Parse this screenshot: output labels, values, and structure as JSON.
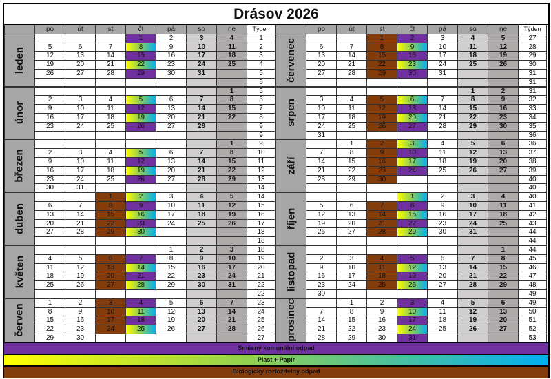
{
  "title": "Drásov 2026",
  "header": {
    "days": [
      "po",
      "út",
      "st",
      "čt",
      "pá",
      "so",
      "ne"
    ],
    "week_label": "Týden"
  },
  "colors": {
    "smesny": "#7030a0",
    "plast_gradient": [
      "#ffff00",
      "#00b0f0"
    ],
    "bio": "#843c0c",
    "saturday": "#d0cece",
    "sunday": "#aeaaaa"
  },
  "legend": {
    "smesny": "Směsný komunální odpad",
    "plast": "Plast + Papír",
    "bio": "Biologicky rozložitelný odpad"
  },
  "left": [
    {
      "name": "leden",
      "rows": [
        {
          "week": 1,
          "days": [
            null,
            null,
            null,
            1,
            2,
            3,
            4
          ]
        },
        {
          "week": 2,
          "days": [
            5,
            6,
            7,
            8,
            9,
            10,
            11
          ]
        },
        {
          "week": 3,
          "days": [
            12,
            13,
            14,
            15,
            16,
            17,
            18
          ]
        },
        {
          "week": 4,
          "days": [
            19,
            20,
            21,
            22,
            23,
            24,
            25
          ]
        },
        {
          "week": 5,
          "days": [
            26,
            27,
            28,
            29,
            30,
            31,
            null
          ]
        },
        {
          "week": 5,
          "days": [
            null,
            null,
            null,
            null,
            null,
            null,
            null
          ]
        }
      ],
      "smesny": [
        1,
        15,
        29
      ],
      "plast": [
        8,
        22
      ],
      "bio": []
    },
    {
      "name": "únor",
      "rows": [
        {
          "week": 5,
          "days": [
            null,
            null,
            null,
            null,
            null,
            null,
            1
          ]
        },
        {
          "week": 6,
          "days": [
            2,
            3,
            4,
            5,
            6,
            7,
            8
          ]
        },
        {
          "week": 7,
          "days": [
            9,
            10,
            11,
            12,
            13,
            14,
            15
          ]
        },
        {
          "week": 8,
          "days": [
            16,
            17,
            18,
            19,
            20,
            21,
            22
          ]
        },
        {
          "week": 9,
          "days": [
            23,
            24,
            25,
            26,
            27,
            28,
            null
          ]
        },
        {
          "week": 9,
          "days": [
            null,
            null,
            null,
            null,
            null,
            null,
            null
          ]
        }
      ],
      "smesny": [
        12,
        26
      ],
      "plast": [
        5,
        19
      ],
      "bio": []
    },
    {
      "name": "březen",
      "rows": [
        {
          "week": 9,
          "days": [
            null,
            null,
            null,
            null,
            null,
            null,
            1
          ]
        },
        {
          "week": 10,
          "days": [
            2,
            3,
            4,
            5,
            6,
            7,
            8
          ]
        },
        {
          "week": 11,
          "days": [
            9,
            10,
            11,
            12,
            13,
            14,
            15
          ]
        },
        {
          "week": 12,
          "days": [
            16,
            17,
            18,
            19,
            20,
            21,
            22
          ]
        },
        {
          "week": 13,
          "days": [
            23,
            24,
            25,
            26,
            27,
            28,
            29
          ]
        },
        {
          "week": 14,
          "days": [
            30,
            31,
            null,
            null,
            null,
            null,
            null
          ]
        }
      ],
      "smesny": [
        12,
        26
      ],
      "plast": [
        5,
        19
      ],
      "bio": []
    },
    {
      "name": "duben",
      "rows": [
        {
          "week": 14,
          "days": [
            null,
            null,
            1,
            2,
            3,
            4,
            5
          ]
        },
        {
          "week": 15,
          "days": [
            6,
            7,
            8,
            9,
            10,
            11,
            12
          ]
        },
        {
          "week": 16,
          "days": [
            13,
            14,
            15,
            16,
            17,
            18,
            19
          ]
        },
        {
          "week": 17,
          "days": [
            20,
            21,
            22,
            23,
            24,
            25,
            26
          ]
        },
        {
          "week": 18,
          "days": [
            27,
            28,
            29,
            30,
            null,
            null,
            null
          ]
        },
        {
          "week": 18,
          "days": [
            null,
            null,
            null,
            null,
            null,
            null,
            null
          ]
        }
      ],
      "smesny": [
        9,
        23
      ],
      "plast": [
        2,
        16,
        30
      ],
      "bio": [
        1,
        8,
        15,
        22,
        29
      ]
    },
    {
      "name": "květen",
      "rows": [
        {
          "week": 18,
          "days": [
            null,
            null,
            null,
            null,
            1,
            2,
            3
          ]
        },
        {
          "week": 19,
          "days": [
            4,
            5,
            6,
            7,
            8,
            9,
            10
          ]
        },
        {
          "week": 20,
          "days": [
            11,
            12,
            13,
            14,
            15,
            16,
            17
          ]
        },
        {
          "week": 21,
          "days": [
            18,
            19,
            20,
            21,
            22,
            23,
            24
          ]
        },
        {
          "week": 22,
          "days": [
            25,
            26,
            27,
            28,
            29,
            30,
            31
          ]
        },
        {
          "week": 22,
          "days": [
            null,
            null,
            null,
            null,
            null,
            null,
            null
          ]
        }
      ],
      "smesny": [
        7,
        21
      ],
      "plast": [
        14,
        28
      ],
      "bio": [
        6,
        13,
        20,
        27
      ]
    },
    {
      "name": "červen",
      "rows": [
        {
          "week": 23,
          "days": [
            1,
            2,
            3,
            4,
            5,
            6,
            7
          ]
        },
        {
          "week": 24,
          "days": [
            8,
            9,
            10,
            11,
            12,
            13,
            14
          ]
        },
        {
          "week": 25,
          "days": [
            15,
            16,
            17,
            18,
            19,
            20,
            21
          ]
        },
        {
          "week": 26,
          "days": [
            22,
            23,
            24,
            25,
            26,
            27,
            28
          ]
        },
        {
          "week": 27,
          "days": [
            29,
            30,
            null,
            null,
            null,
            null,
            null
          ]
        }
      ],
      "smesny": [
        4,
        18
      ],
      "plast": [
        11,
        25
      ],
      "bio": [
        3,
        10,
        17,
        24
      ]
    }
  ],
  "right": [
    {
      "name": "červenec",
      "rows": [
        {
          "week": 27,
          "days": [
            null,
            null,
            1,
            2,
            3,
            4,
            5
          ]
        },
        {
          "week": 28,
          "days": [
            6,
            7,
            8,
            9,
            10,
            11,
            12
          ]
        },
        {
          "week": 29,
          "days": [
            13,
            14,
            15,
            16,
            17,
            18,
            19
          ]
        },
        {
          "week": 30,
          "days": [
            20,
            21,
            22,
            23,
            24,
            25,
            26
          ]
        },
        {
          "week": 31,
          "days": [
            27,
            28,
            29,
            30,
            31,
            null,
            null
          ]
        },
        {
          "week": 31,
          "days": [
            null,
            null,
            null,
            null,
            null,
            null,
            null
          ]
        }
      ],
      "smesny": [
        2,
        16,
        30
      ],
      "plast": [
        9,
        23
      ],
      "bio": [
        1,
        8,
        15,
        22,
        29
      ]
    },
    {
      "name": "srpen",
      "rows": [
        {
          "week": 31,
          "days": [
            null,
            null,
            null,
            null,
            null,
            1,
            2
          ]
        },
        {
          "week": 32,
          "days": [
            3,
            4,
            5,
            6,
            7,
            8,
            9
          ]
        },
        {
          "week": 33,
          "days": [
            10,
            11,
            12,
            13,
            14,
            15,
            16
          ]
        },
        {
          "week": 34,
          "days": [
            17,
            18,
            19,
            20,
            21,
            22,
            23
          ]
        },
        {
          "week": 35,
          "days": [
            24,
            25,
            26,
            27,
            28,
            29,
            30
          ]
        },
        {
          "week": 36,
          "days": [
            31,
            null,
            null,
            null,
            null,
            null,
            null
          ]
        }
      ],
      "smesny": [
        13,
        27
      ],
      "plast": [
        6,
        20
      ],
      "bio": [
        5,
        12,
        19,
        26
      ]
    },
    {
      "name": "září",
      "rows": [
        {
          "week": 36,
          "days": [
            null,
            1,
            2,
            3,
            4,
            5,
            6
          ]
        },
        {
          "week": 37,
          "days": [
            7,
            8,
            9,
            10,
            11,
            12,
            13
          ]
        },
        {
          "week": 38,
          "days": [
            14,
            15,
            16,
            17,
            18,
            19,
            20
          ]
        },
        {
          "week": 39,
          "days": [
            21,
            22,
            23,
            24,
            25,
            26,
            27
          ]
        },
        {
          "week": 40,
          "days": [
            28,
            29,
            30,
            null,
            null,
            null,
            null
          ]
        },
        {
          "week": 40,
          "days": [
            null,
            null,
            null,
            null,
            null,
            null,
            null
          ]
        }
      ],
      "smesny": [
        10,
        24
      ],
      "plast": [
        3,
        17
      ],
      "bio": [
        2,
        9,
        16,
        23,
        30
      ]
    },
    {
      "name": "říjen",
      "rows": [
        {
          "week": 40,
          "days": [
            null,
            null,
            null,
            1,
            2,
            3,
            4
          ]
        },
        {
          "week": 41,
          "days": [
            5,
            6,
            7,
            8,
            9,
            10,
            11
          ]
        },
        {
          "week": 42,
          "days": [
            12,
            13,
            14,
            15,
            16,
            17,
            18
          ]
        },
        {
          "week": 43,
          "days": [
            19,
            20,
            21,
            22,
            23,
            24,
            25
          ]
        },
        {
          "week": 44,
          "days": [
            26,
            27,
            28,
            29,
            30,
            31,
            null
          ]
        },
        {
          "week": 44,
          "days": [
            null,
            null,
            null,
            null,
            null,
            null,
            null
          ]
        }
      ],
      "smesny": [
        8,
        22
      ],
      "plast": [
        1,
        15,
        29
      ],
      "bio": [
        7,
        14,
        21,
        28
      ]
    },
    {
      "name": "listopad",
      "rows": [
        {
          "week": 44,
          "days": [
            null,
            null,
            null,
            null,
            null,
            null,
            1
          ]
        },
        {
          "week": 45,
          "days": [
            2,
            3,
            4,
            5,
            6,
            7,
            8
          ]
        },
        {
          "week": 46,
          "days": [
            9,
            10,
            11,
            12,
            13,
            14,
            15
          ]
        },
        {
          "week": 47,
          "days": [
            16,
            17,
            18,
            19,
            20,
            21,
            22
          ]
        },
        {
          "week": 48,
          "days": [
            23,
            24,
            25,
            26,
            27,
            28,
            29
          ]
        },
        {
          "week": 49,
          "days": [
            30,
            null,
            null,
            null,
            null,
            null,
            null
          ]
        }
      ],
      "smesny": [
        5,
        19
      ],
      "plast": [
        12,
        26
      ],
      "bio": [
        4,
        11,
        18,
        25
      ]
    },
    {
      "name": "prosinec",
      "rows": [
        {
          "week": 49,
          "days": [
            null,
            1,
            2,
            3,
            4,
            5,
            6
          ]
        },
        {
          "week": 50,
          "days": [
            7,
            8,
            9,
            10,
            11,
            12,
            13
          ]
        },
        {
          "week": 51,
          "days": [
            14,
            15,
            16,
            17,
            18,
            19,
            20
          ]
        },
        {
          "week": 52,
          "days": [
            21,
            22,
            23,
            24,
            25,
            26,
            27
          ]
        },
        {
          "week": 53,
          "days": [
            28,
            29,
            30,
            31,
            null,
            null,
            null
          ]
        }
      ],
      "smesny": [
        3,
        17,
        31
      ],
      "plast": [
        10,
        24
      ],
      "bio": []
    }
  ]
}
